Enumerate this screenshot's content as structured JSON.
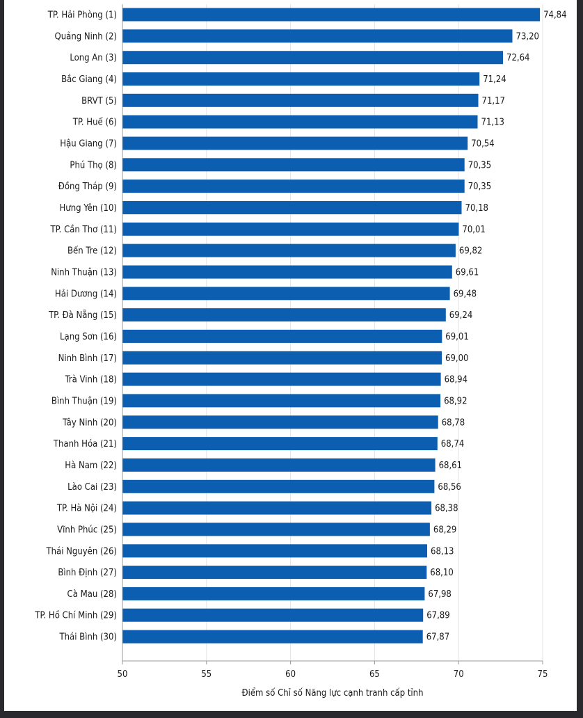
{
  "chart_data": {
    "type": "bar",
    "orientation": "horizontal",
    "xlabel": "Điểm số Chỉ số Năng lực cạnh tranh cấp tỉnh",
    "xlim": [
      50,
      75
    ],
    "xticks": [
      "50",
      "55",
      "60",
      "65",
      "70",
      "75"
    ],
    "bar_color": "#0b5eb0",
    "categories": [
      "TP. Hải Phòng (1)",
      "Quảng Ninh (2)",
      "Long An (3)",
      "Bắc Giang (4)",
      "BRVT (5)",
      "TP. Huế (6)",
      "Hậu Giang (7)",
      "Phú Thọ (8)",
      "Đồng Tháp (9)",
      "Hưng Yên (10)",
      "TP. Cần Thơ (11)",
      "Bến Tre (12)",
      "Ninh Thuận (13)",
      "Hải Dương (14)",
      "TP. Đà Nẵng (15)",
      "Lạng Sơn (16)",
      "Ninh Bình (17)",
      "Trà Vinh (18)",
      "Bình Thuận (19)",
      "Tây Ninh (20)",
      "Thanh Hóa (21)",
      "Hà Nam (22)",
      "Lào Cai (23)",
      "TP. Hà Nội (24)",
      "Vĩnh Phúc (25)",
      "Thái Nguyên (26)",
      "Bình Định (27)",
      "Cà Mau (28)",
      "TP. Hồ Chí Minh (29)",
      "Thái Bình (30)"
    ],
    "values": [
      74.84,
      73.2,
      72.64,
      71.24,
      71.17,
      71.13,
      70.54,
      70.35,
      70.35,
      70.18,
      70.01,
      69.82,
      69.61,
      69.48,
      69.24,
      69.01,
      69.0,
      68.94,
      68.92,
      68.78,
      68.74,
      68.61,
      68.56,
      68.38,
      68.29,
      68.13,
      68.1,
      67.98,
      67.89,
      67.87
    ],
    "value_labels": [
      "74,84",
      "73,20",
      "72,64",
      "71,24",
      "71,17",
      "71,13",
      "70,54",
      "70,35",
      "70,35",
      "70,18",
      "70,01",
      "69,82",
      "69,61",
      "69,48",
      "69,24",
      "69,01",
      "69,00",
      "68,94",
      "68,92",
      "68,78",
      "68,74",
      "68,61",
      "68,56",
      "68,38",
      "68,29",
      "68,13",
      "68,10",
      "67,98",
      "67,89",
      "67,87"
    ]
  }
}
